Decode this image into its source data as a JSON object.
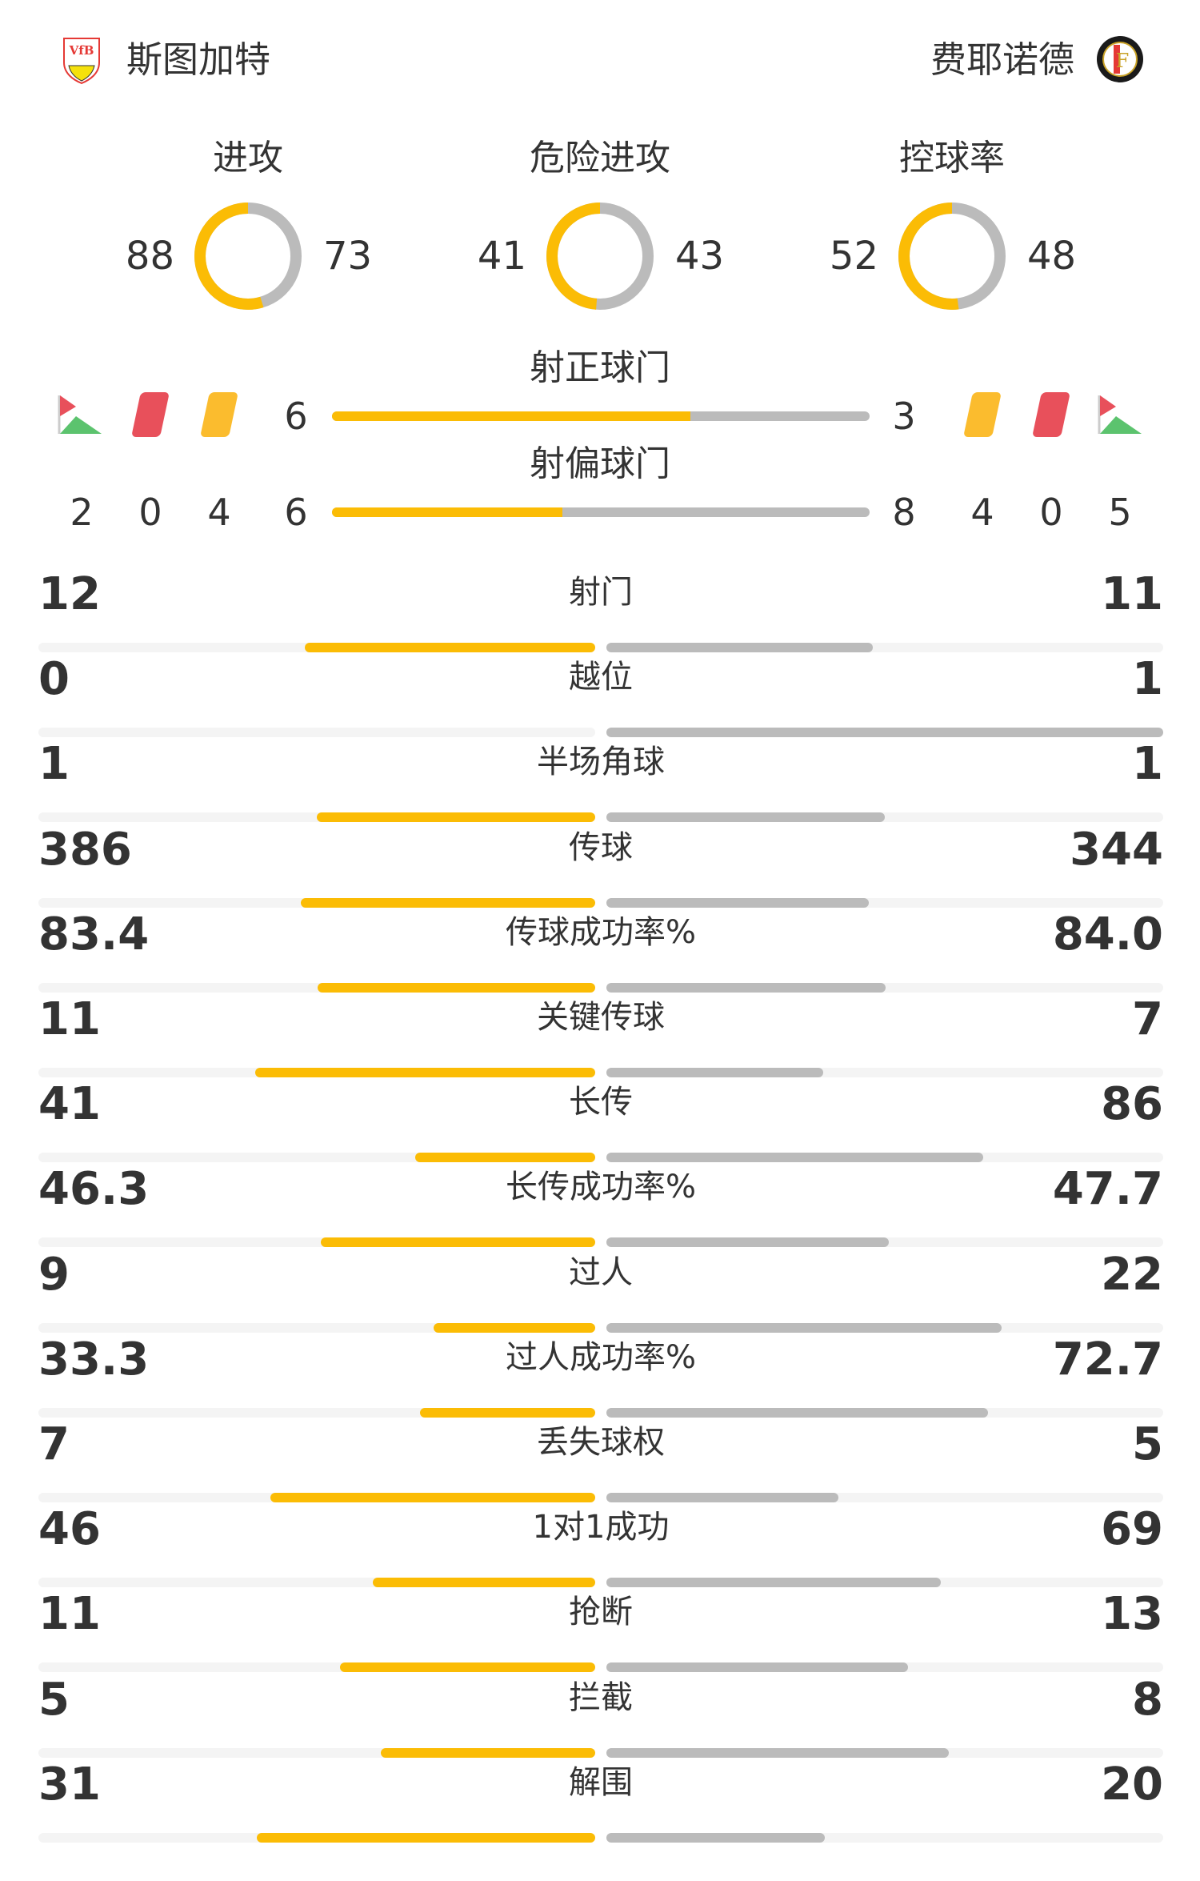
{
  "header": {
    "home_team": "斯图加特",
    "away_team": "费耶诺德",
    "home_badge_icon": "vfb-stuttgart-crest",
    "away_badge_icon": "feyenoord-crest"
  },
  "colors": {
    "home": "#fbbc05",
    "away": "#bbbbbb",
    "track": "#f4f4f4",
    "red_card": "#e8505b",
    "yellow_card": "#fbbc2e",
    "corner_flag": "#e8505b",
    "corner_field": "#5cc36e"
  },
  "donuts": [
    {
      "label": "进攻",
      "home": "88",
      "away": "73"
    },
    {
      "label": "危险进攻",
      "home": "41",
      "away": "43"
    },
    {
      "label": "控球率",
      "home": "52",
      "away": "48"
    }
  ],
  "shots_on_target": {
    "label": "射正球门",
    "home": "6",
    "away": "3"
  },
  "shots_off_target": {
    "label": "射偏球门",
    "home": "6",
    "away": "8"
  },
  "home_counts": {
    "corners": "2",
    "red_cards": "0",
    "yellow_cards": "4"
  },
  "away_counts": {
    "yellow_cards": "4",
    "red_cards": "0",
    "corners": "5"
  },
  "stats": [
    {
      "label": "射门",
      "home": "12",
      "away": "11"
    },
    {
      "label": "越位",
      "home": "0",
      "away": "1"
    },
    {
      "label": "半场角球",
      "home": "1",
      "away": "1"
    },
    {
      "label": "传球",
      "home": "386",
      "away": "344"
    },
    {
      "label": "传球成功率%",
      "home": "83.4",
      "away": "84.0"
    },
    {
      "label": "关键传球",
      "home": "11",
      "away": "7"
    },
    {
      "label": "长传",
      "home": "41",
      "away": "86"
    },
    {
      "label": "长传成功率%",
      "home": "46.3",
      "away": "47.7"
    },
    {
      "label": "过人",
      "home": "9",
      "away": "22"
    },
    {
      "label": "过人成功率%",
      "home": "33.3",
      "away": "72.7"
    },
    {
      "label": "丢失球权",
      "home": "7",
      "away": "5"
    },
    {
      "label": "1对1成功",
      "home": "46",
      "away": "69"
    },
    {
      "label": "抢断",
      "home": "11",
      "away": "13"
    },
    {
      "label": "拦截",
      "home": "5",
      "away": "8"
    },
    {
      "label": "解围",
      "home": "31",
      "away": "20"
    }
  ]
}
